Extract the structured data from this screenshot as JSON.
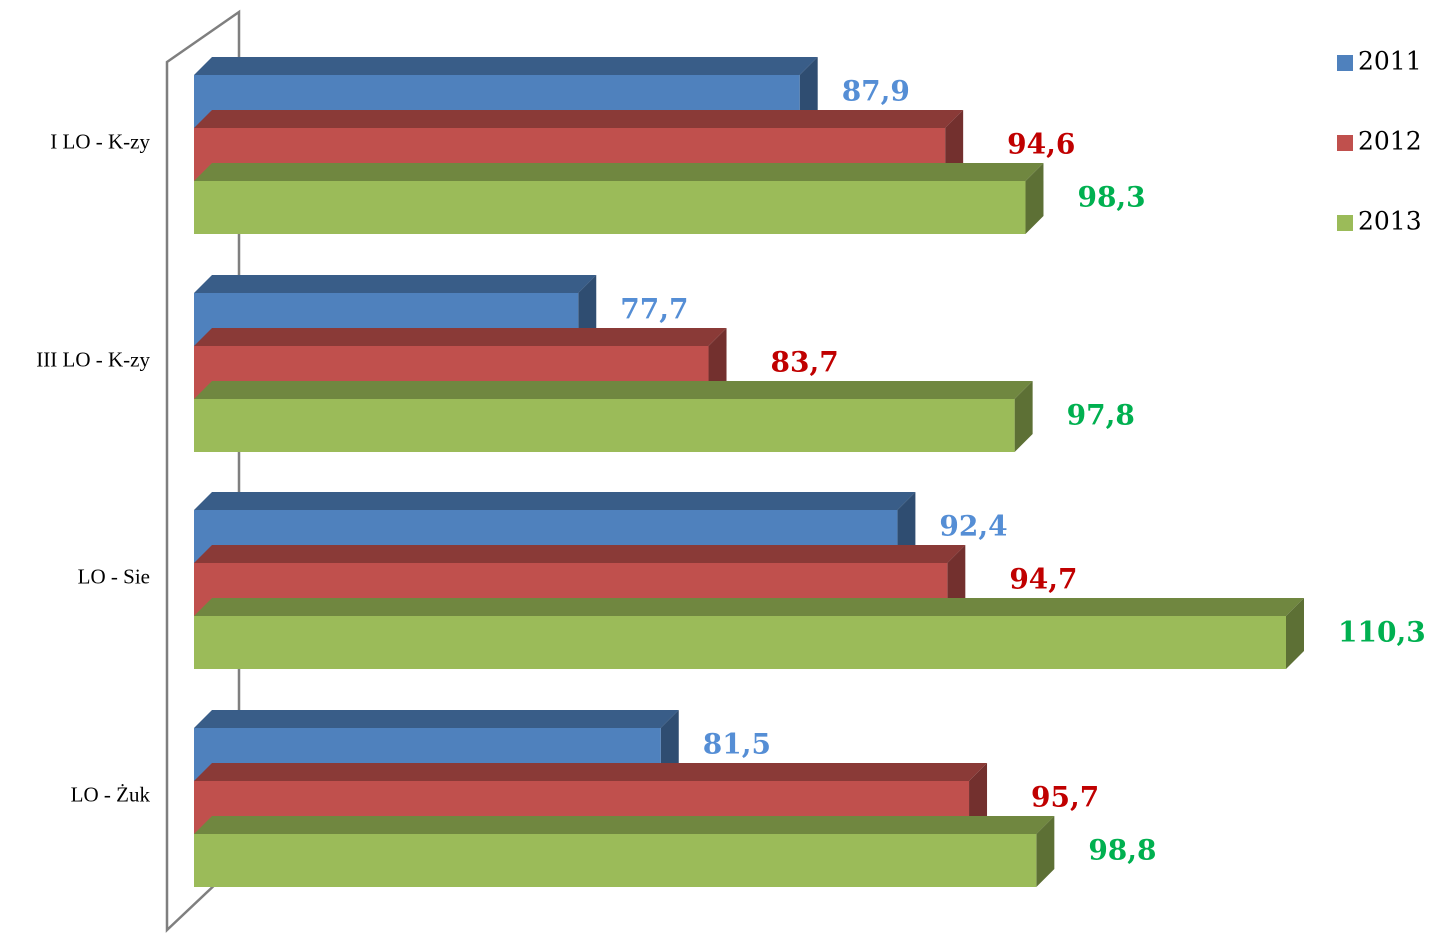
{
  "chart_data": {
    "type": "bar",
    "orientation": "horizontal",
    "three_d": true,
    "categories": [
      "I LO - K-zy",
      "III LO - K-zy",
      "LO - Sie",
      "LO - Żuk"
    ],
    "series": [
      {
        "name": "2011",
        "values": [
          87.9,
          77.7,
          92.4,
          81.5
        ],
        "labels": [
          "87,9",
          "77,7",
          "92,4",
          "81,5"
        ],
        "color": "#4F81BD",
        "label_color": "#558ED5"
      },
      {
        "name": "2012",
        "values": [
          94.6,
          83.7,
          94.7,
          95.7
        ],
        "labels": [
          "94,6",
          "83,7",
          "94,7",
          "95,7"
        ],
        "color": "#C0504D",
        "label_color": "#C00000"
      },
      {
        "name": "2013",
        "values": [
          98.3,
          97.8,
          110.3,
          98.8
        ],
        "labels": [
          "98,3",
          "97,8",
          "110,3",
          "98,8"
        ],
        "color": "#9BBB59",
        "label_color": "#00B050"
      }
    ],
    "value_axis_min": 60,
    "value_axis_max": 110.3,
    "grid": false,
    "legend_position": "top-right"
  }
}
